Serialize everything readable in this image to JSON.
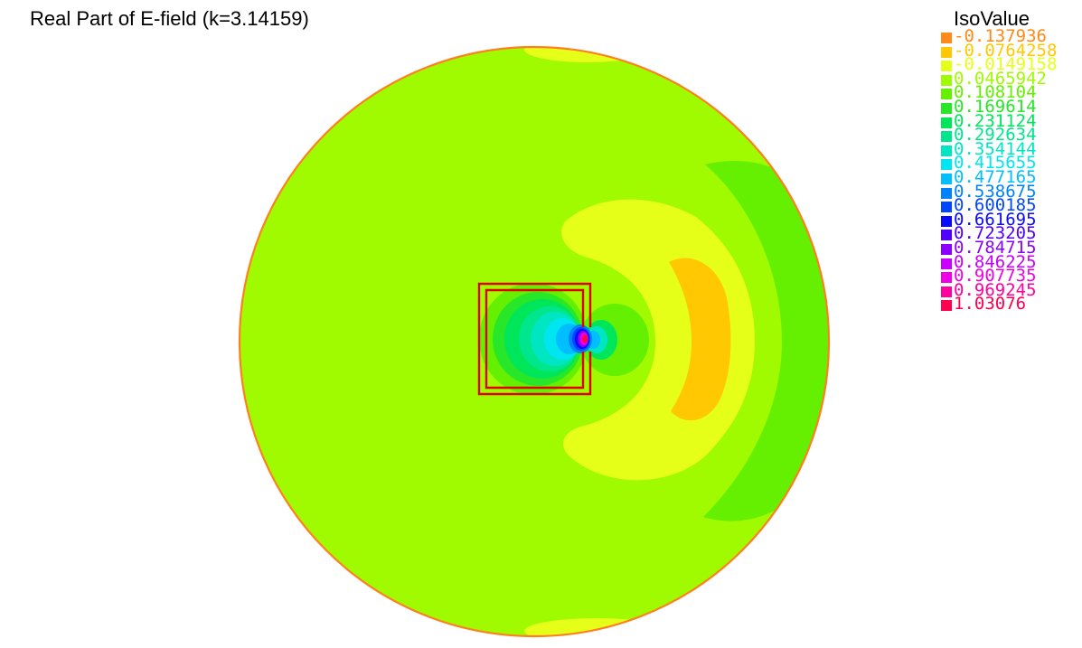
{
  "chart_data": {
    "type": "heatmap",
    "title": "Real Part of E-field (k=3.14159)",
    "legend_title": "IsoValue",
    "legend_placement": "top-right",
    "colors": {
      "background": "#ffffff",
      "domain_fill": "#a0fa00",
      "boundary": "#ff7f1e",
      "rectangle": "#e00000"
    },
    "levels": [
      {
        "label": "-0.137936",
        "value": -0.137936,
        "color": "#ff8a18"
      },
      {
        "label": "-0.0764258",
        "value": -0.0764258,
        "color": "#ffc800"
      },
      {
        "label": "-0.0149158",
        "value": -0.0149158,
        "color": "#e6ff18"
      },
      {
        "label": "0.0465942",
        "value": 0.0465942,
        "color": "#a0fa00"
      },
      {
        "label": "0.108104",
        "value": 0.108104,
        "color": "#64f000"
      },
      {
        "label": "0.169614",
        "value": 0.169614,
        "color": "#28e628"
      },
      {
        "label": "0.231124",
        "value": 0.231124,
        "color": "#00e65a"
      },
      {
        "label": "0.292634",
        "value": 0.292634,
        "color": "#00e68c"
      },
      {
        "label": "0.354144",
        "value": 0.354144,
        "color": "#00e6c3"
      },
      {
        "label": "0.415655",
        "value": 0.415655,
        "color": "#00e6f0"
      },
      {
        "label": "0.477165",
        "value": 0.477165,
        "color": "#00beff"
      },
      {
        "label": "0.538675",
        "value": 0.538675,
        "color": "#0082ff"
      },
      {
        "label": "0.600185",
        "value": 0.600185,
        "color": "#0046ff"
      },
      {
        "label": "0.661695",
        "value": 0.661695,
        "color": "#0a0aff"
      },
      {
        "label": "0.723205",
        "value": 0.723205,
        "color": "#5000ff"
      },
      {
        "label": "0.784715",
        "value": 0.784715,
        "color": "#8c00ff"
      },
      {
        "label": "0.846225",
        "value": 0.846225,
        "color": "#c800ff"
      },
      {
        "label": "0.907735",
        "value": 0.907735,
        "color": "#f000e6"
      },
      {
        "label": "0.969245",
        "value": 0.969245,
        "color": "#ff00a0"
      },
      {
        "label": "1.03076",
        "value": 1.03076,
        "color": "#ff0050"
      }
    ]
  }
}
